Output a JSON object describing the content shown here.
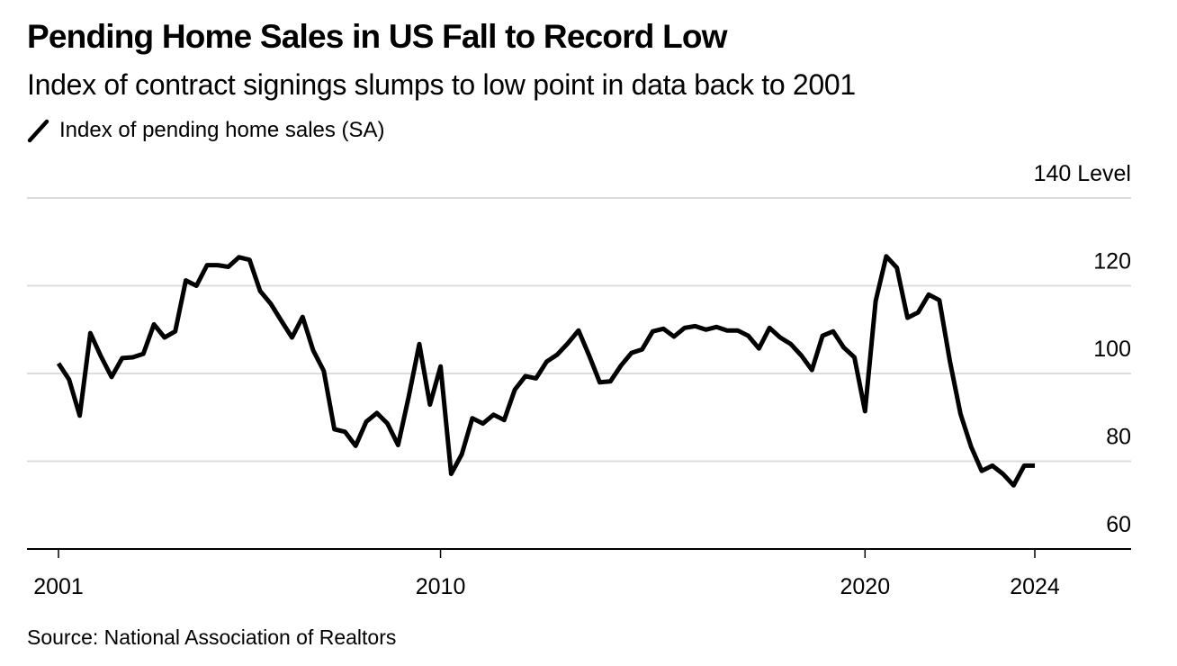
{
  "title": "Pending Home Sales in US Fall to Record Low",
  "subtitle": "Index of contract signings slumps to low point in data back to 2001",
  "legend": {
    "icon": "line-swatch-icon",
    "label": "Index of pending home sales (SA)"
  },
  "source": "Source: National Association of Realtors",
  "chart_data": {
    "type": "line",
    "title": "Pending Home Sales in US Fall to Record Low",
    "subtitle": "Index of contract signings slumps to low point in data back to 2001",
    "xlabel": "",
    "ylabel": "Level",
    "ylim": [
      60,
      140
    ],
    "xlim": [
      2000.9,
      2025.3
    ],
    "y_ticks": [
      60,
      80,
      100,
      120,
      140
    ],
    "y_tick_labels": [
      "60",
      "80",
      "100",
      "120",
      "140 Level"
    ],
    "x_ticks": [
      2001,
      2010,
      2020,
      2024
    ],
    "x_tick_labels": [
      "2001",
      "2010",
      "2020",
      "2024"
    ],
    "grid": true,
    "y_axis_side": "right",
    "legend_position": "top-left",
    "series": [
      {
        "name": "Index of pending home sales (SA)",
        "color": "#000000",
        "x": [
          2001.0,
          2001.25,
          2001.5,
          2001.75,
          2002.0,
          2002.25,
          2002.5,
          2002.75,
          2003.0,
          2003.25,
          2003.5,
          2003.75,
          2004.0,
          2004.25,
          2004.5,
          2004.75,
          2005.0,
          2005.25,
          2005.5,
          2005.75,
          2006.0,
          2006.25,
          2006.5,
          2006.75,
          2007.0,
          2007.25,
          2007.5,
          2007.75,
          2008.0,
          2008.25,
          2008.5,
          2008.75,
          2009.0,
          2009.25,
          2009.5,
          2009.75,
          2010.0,
          2010.25,
          2010.5,
          2010.75,
          2011.0,
          2011.25,
          2011.5,
          2011.75,
          2012.0,
          2012.25,
          2012.5,
          2012.75,
          2013.0,
          2013.25,
          2013.5,
          2013.75,
          2014.0,
          2014.25,
          2014.5,
          2014.75,
          2015.0,
          2015.25,
          2015.5,
          2015.75,
          2016.0,
          2016.25,
          2016.5,
          2016.75,
          2017.0,
          2017.25,
          2017.5,
          2017.75,
          2018.0,
          2018.25,
          2018.5,
          2018.75,
          2019.0,
          2019.25,
          2019.5,
          2019.75,
          2020.0,
          2020.25,
          2020.5,
          2020.75,
          2021.0,
          2021.25,
          2021.5,
          2021.75,
          2022.0,
          2022.25,
          2022.5,
          2022.75,
          2023.0,
          2023.25,
          2023.5,
          2023.75,
          2024.0
        ],
        "values": [
          102.3,
          98.6,
          90.4,
          109.2,
          103.9,
          99.2,
          103.5,
          103.7,
          104.5,
          111.2,
          108.2,
          109.6,
          121.2,
          120.0,
          124.7,
          124.7,
          124.3,
          126.5,
          125.9,
          118.8,
          115.9,
          112.0,
          108.2,
          112.9,
          105.3,
          100.6,
          87.3,
          86.7,
          83.5,
          89.0,
          91.0,
          88.6,
          83.7,
          94.7,
          106.7,
          92.9,
          101.6,
          77.1,
          81.6,
          89.8,
          88.6,
          90.6,
          89.4,
          96.3,
          99.4,
          98.9,
          102.7,
          104.3,
          106.9,
          109.8,
          104.1,
          98.0,
          98.2,
          101.8,
          104.7,
          105.5,
          109.6,
          110.2,
          108.4,
          110.4,
          110.8,
          110.0,
          110.6,
          109.8,
          109.8,
          108.6,
          105.7,
          110.4,
          108.2,
          106.7,
          104.1,
          100.8,
          108.6,
          109.6,
          105.9,
          103.7,
          91.4,
          116.5,
          126.7,
          124.1,
          112.7,
          113.9,
          118.0,
          116.7,
          102.7,
          90.8,
          83.3,
          77.8,
          79.0,
          77.1,
          74.5,
          79.0,
          79.0
        ]
      }
    ]
  }
}
